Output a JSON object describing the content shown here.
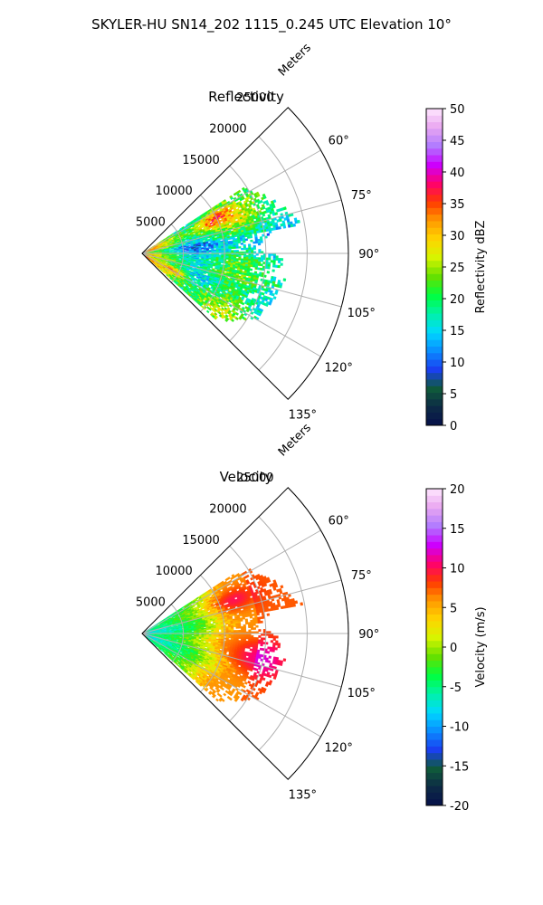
{
  "figure": {
    "suptitle": "SKYLER-HU  SN14_202  1115_0.245 UTC Elevation 10°"
  },
  "chart_data": [
    {
      "type": "heatmap",
      "subtype": "polar-sector (PPI)",
      "title": "Reflectivity",
      "radial_label": "Meters",
      "range_ticks": [
        5000,
        10000,
        15000,
        20000,
        25000
      ],
      "range_tick_labels": [
        "5000",
        "10000",
        "15000",
        "20000",
        "25000"
      ],
      "r_max": 25000,
      "azimuth_ticks": [
        60,
        75,
        90,
        105,
        120,
        135
      ],
      "azimuth_tick_labels": [
        "60°",
        "75°",
        "90°",
        "105°",
        "120°",
        "135°"
      ],
      "azimuth_range": [
        45,
        135
      ],
      "grid": true,
      "colorbar": {
        "label": "Reflectivity dBZ",
        "range": [
          0,
          50
        ],
        "ticks": [
          0,
          5,
          10,
          15,
          20,
          25,
          30,
          35,
          40,
          45,
          50
        ]
      },
      "data_extent": {
        "azimuth_deg": [
          57,
          132
        ],
        "max_range_m": 20000,
        "typical_value_range": [
          12,
          38
        ],
        "core_values": [
          30,
          35
        ]
      }
    },
    {
      "type": "heatmap",
      "subtype": "polar-sector (PPI)",
      "title": "Velocity",
      "radial_label": "Meters",
      "range_ticks": [
        5000,
        10000,
        15000,
        20000,
        25000
      ],
      "range_tick_labels": [
        "5000",
        "10000",
        "15000",
        "20000",
        "25000"
      ],
      "r_max": 25000,
      "azimuth_ticks": [
        60,
        75,
        90,
        105,
        120,
        135
      ],
      "azimuth_tick_labels": [
        "60°",
        "75°",
        "90°",
        "105°",
        "120°",
        "135°"
      ],
      "azimuth_range": [
        45,
        135
      ],
      "grid": true,
      "colorbar": {
        "label": "Velocity (m/s)",
        "range": [
          -20,
          20
        ],
        "ticks": [
          -20,
          -15,
          -10,
          -5,
          0,
          5,
          10,
          15,
          20
        ]
      },
      "data_extent": {
        "azimuth_deg": [
          57,
          132
        ],
        "max_range_m": 20000,
        "near_range_values": [
          -10,
          -5
        ],
        "typical_value_range": [
          0,
          10
        ],
        "core_values": [
          8,
          10
        ]
      }
    }
  ],
  "colors": {
    "cmap_stops": [
      "#06104a",
      "#0d2a46",
      "#0f5a3a",
      "#1a3ff0",
      "#0a8cff",
      "#00d8ff",
      "#00f2a8",
      "#00ff3e",
      "#66e000",
      "#d6f500",
      "#ffd400",
      "#ff9a00",
      "#ff3a00",
      "#ff006e",
      "#cc00ff",
      "#b07bff",
      "#e9a6f0",
      "#ffe6ff"
    ]
  }
}
